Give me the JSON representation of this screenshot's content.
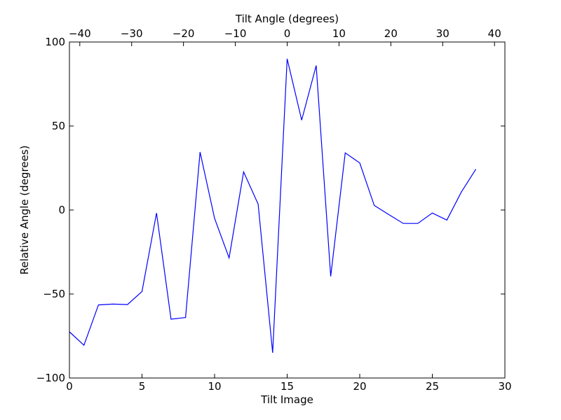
{
  "chart_data": {
    "type": "line",
    "xlabel": "Tilt Image",
    "ylabel": "Relative Angle (degrees)",
    "top_xlabel": "Tilt Angle (degrees)",
    "xlim": [
      0,
      30
    ],
    "ylim": [
      -100,
      100
    ],
    "top_xlim": [
      -42,
      42
    ],
    "x_ticks": [
      0,
      5,
      10,
      15,
      20,
      25,
      30
    ],
    "y_ticks": [
      -100,
      -50,
      0,
      50,
      100
    ],
    "top_x_ticks": [
      -40,
      -30,
      -20,
      -10,
      0,
      10,
      20,
      30,
      40
    ],
    "x_tick_labels": [
      "0",
      "5",
      "10",
      "15",
      "20",
      "25",
      "30"
    ],
    "y_tick_labels": [
      "−100",
      "−50",
      "0",
      "50",
      "100"
    ],
    "top_x_tick_labels": [
      "−40",
      "−30",
      "−20",
      "−10",
      "0",
      "10",
      "20",
      "30",
      "40"
    ],
    "grid": false,
    "series": [
      {
        "color": "#0000ff",
        "x": [
          0,
          1,
          2,
          3,
          4,
          5,
          6,
          7,
          8,
          9,
          10,
          11,
          12,
          13,
          14,
          15,
          16,
          17,
          18,
          19,
          20,
          21,
          22,
          23,
          24,
          25,
          26,
          27,
          28
        ],
        "values": [
          -72.5,
          -80.5,
          -56.5,
          -56,
          -56.3,
          -48.5,
          -1.8,
          -65,
          -64,
          34.5,
          -5,
          -28.5,
          22.7,
          3.5,
          -85,
          90,
          53.5,
          86,
          -39.5,
          34,
          28,
          2.7,
          -2.7,
          -8,
          -8,
          -1.8,
          -6,
          10.7,
          24.3
        ]
      }
    ]
  }
}
